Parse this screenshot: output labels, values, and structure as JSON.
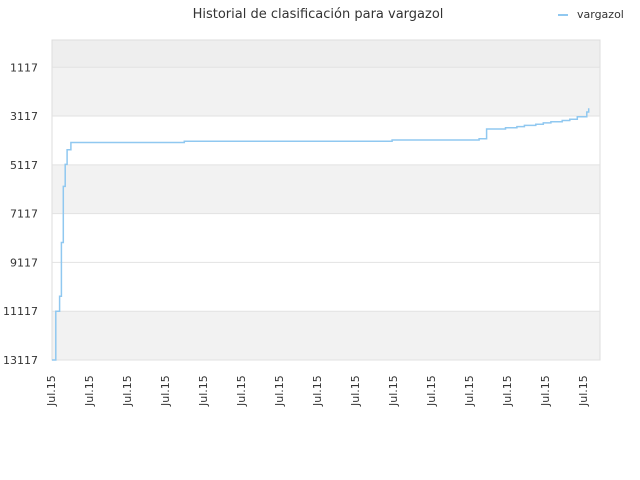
{
  "chart_data": {
    "type": "line",
    "title": "Historial de clasificación para vargazol",
    "xlabel": "",
    "ylabel": "",
    "y_inverted": true,
    "ylim": [
      13117,
      0
    ],
    "y_ticks": [
      1117,
      3117,
      5117,
      7117,
      9117,
      11117,
      13117
    ],
    "y_tick_labels": [
      "1117",
      "3117",
      "5117",
      "7117",
      "9117",
      "11117",
      "13117"
    ],
    "x_tick_labels": [
      "Jul.15",
      "Jul.15",
      "Jul.15",
      "Jul.15",
      "Jul.15",
      "Jul.15",
      "Jul.15",
      "Jul.15",
      "Jul.15",
      "Jul.15",
      "Jul.15",
      "Jul.15",
      "Jul.15",
      "Jul.15",
      "Jul.15"
    ],
    "grid": true,
    "legend_position": "top-right",
    "series": [
      {
        "name": "vargazol",
        "color": "#90c8f0",
        "x": [
          0.0,
          0.1,
          0.2,
          0.25,
          0.3,
          0.35,
          0.4,
          0.5,
          1.0,
          3.0,
          3.5,
          4.0,
          6.0,
          8.0,
          9.0,
          11.0,
          11.3,
          11.5,
          11.6,
          12.0,
          12.3,
          12.5,
          12.8,
          13.0,
          13.2,
          13.5,
          13.7,
          13.9,
          14.0,
          14.15,
          14.2
        ],
        "y": [
          13117,
          11117,
          10500,
          8300,
          6000,
          5100,
          4500,
          4200,
          4200,
          4200,
          4150,
          4150,
          4150,
          4150,
          4100,
          4100,
          4050,
          3650,
          3650,
          3600,
          3550,
          3500,
          3450,
          3400,
          3350,
          3300,
          3250,
          3150,
          3150,
          2950,
          2800
        ]
      }
    ]
  }
}
